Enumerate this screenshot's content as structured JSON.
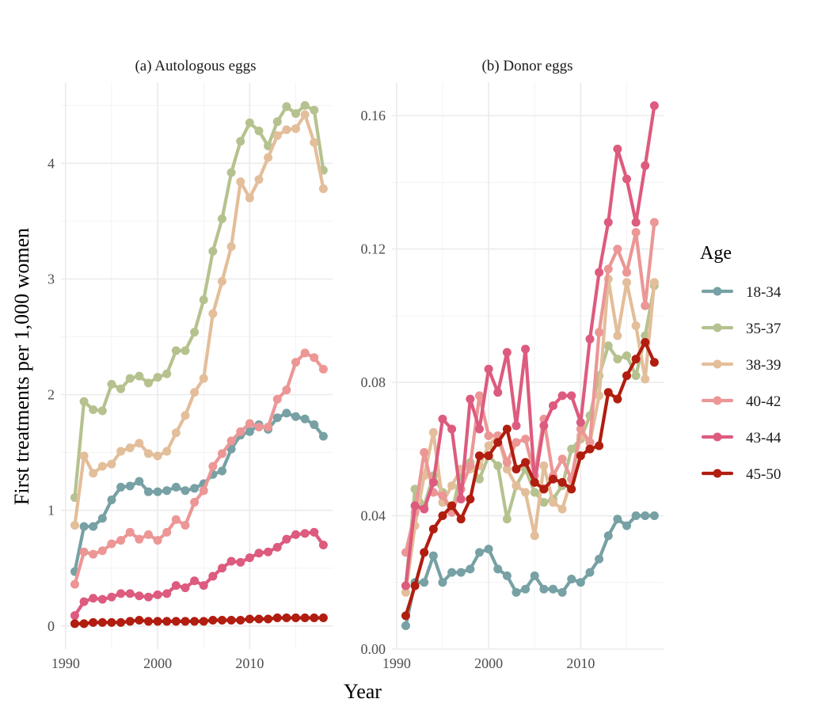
{
  "chart_data": {
    "type": "line",
    "xlabel": "Year",
    "ylabel": "First treatments per 1,000 women",
    "legend": {
      "title": "Age",
      "position": "right"
    },
    "grid": true,
    "colors": {
      "18-34": "#77A1A4",
      "35-37": "#B5C28F",
      "38-39": "#E3BE9A",
      "40-42": "#EC9696",
      "43-44": "#DD5B7E",
      "45-50": "#B11D0F"
    },
    "x": [
      1991,
      1992,
      1993,
      1994,
      1995,
      1996,
      1997,
      1998,
      1999,
      2000,
      2001,
      2002,
      2003,
      2004,
      2005,
      2006,
      2007,
      2008,
      2009,
      2010,
      2011,
      2012,
      2013,
      2014,
      2015,
      2016,
      2017,
      2018
    ],
    "panels": [
      {
        "title": "(a) Autologous eggs",
        "xlim": [
          1989.5,
          2019
        ],
        "xticks": [
          1990,
          2000,
          2010
        ],
        "ylim": [
          -0.2,
          4.7
        ],
        "yticks": [
          0,
          1,
          2,
          3,
          4
        ],
        "ytick_labels": [
          "0",
          "1",
          "2",
          "3",
          "4"
        ],
        "series": [
          {
            "name": "18-34",
            "values": [
              0.47,
              0.86,
              0.86,
              0.93,
              1.09,
              1.2,
              1.21,
              1.25,
              1.16,
              1.16,
              1.17,
              1.2,
              1.17,
              1.19,
              1.23,
              1.31,
              1.34,
              1.53,
              1.65,
              1.68,
              1.74,
              1.7,
              1.8,
              1.84,
              1.81,
              1.79,
              1.74,
              1.64
            ]
          },
          {
            "name": "35-37",
            "values": [
              1.11,
              1.94,
              1.87,
              1.86,
              2.09,
              2.05,
              2.14,
              2.16,
              2.1,
              2.15,
              2.18,
              2.38,
              2.38,
              2.54,
              2.82,
              3.24,
              3.52,
              3.92,
              4.19,
              4.35,
              4.28,
              4.15,
              4.36,
              4.49,
              4.43,
              4.5,
              4.46,
              3.94
            ]
          },
          {
            "name": "38-39",
            "values": [
              0.87,
              1.47,
              1.32,
              1.38,
              1.4,
              1.51,
              1.54,
              1.58,
              1.49,
              1.47,
              1.51,
              1.67,
              1.82,
              2.02,
              2.14,
              2.7,
              2.98,
              3.28,
              3.84,
              3.7,
              3.86,
              4.05,
              4.24,
              4.29,
              4.3,
              4.42,
              4.18,
              3.78
            ]
          },
          {
            "name": "40-42",
            "values": [
              0.36,
              0.64,
              0.62,
              0.65,
              0.71,
              0.74,
              0.81,
              0.75,
              0.79,
              0.74,
              0.81,
              0.92,
              0.87,
              1.07,
              1.17,
              1.38,
              1.49,
              1.6,
              1.68,
              1.75,
              1.72,
              1.72,
              1.96,
              2.04,
              2.28,
              2.36,
              2.32,
              2.22
            ]
          },
          {
            "name": "43-44",
            "values": [
              0.09,
              0.21,
              0.24,
              0.23,
              0.25,
              0.28,
              0.28,
              0.26,
              0.25,
              0.27,
              0.28,
              0.35,
              0.33,
              0.39,
              0.35,
              0.43,
              0.5,
              0.56,
              0.55,
              0.59,
              0.63,
              0.64,
              0.68,
              0.75,
              0.79,
              0.8,
              0.81,
              0.7
            ]
          },
          {
            "name": "45-50",
            "values": [
              0.02,
              0.02,
              0.03,
              0.03,
              0.03,
              0.03,
              0.04,
              0.05,
              0.04,
              0.04,
              0.04,
              0.04,
              0.04,
              0.04,
              0.04,
              0.05,
              0.05,
              0.05,
              0.05,
              0.06,
              0.06,
              0.06,
              0.07,
              0.07,
              0.07,
              0.07,
              0.07,
              0.07
            ]
          }
        ]
      },
      {
        "title": "(b) Donor eggs",
        "xlim": [
          1989.5,
          2019
        ],
        "xticks": [
          1990,
          2000,
          2010
        ],
        "ylim": [
          0,
          0.17
        ],
        "yticks": [
          0,
          0.04,
          0.08,
          0.12,
          0.16
        ],
        "ytick_labels": [
          "0.00",
          "0.04",
          "0.08",
          "0.12",
          "0.16"
        ],
        "series": [
          {
            "name": "18-34",
            "values": [
              0.007,
              0.02,
              0.02,
              0.028,
              0.02,
              0.023,
              0.023,
              0.024,
              0.029,
              0.03,
              0.024,
              0.022,
              0.017,
              0.018,
              0.022,
              0.018,
              0.018,
              0.017,
              0.021,
              0.02,
              0.023,
              0.027,
              0.034,
              0.039,
              0.037,
              0.04,
              0.04,
              0.04
            ]
          },
          {
            "name": "35-37",
            "values": [
              0.019,
              0.048,
              0.043,
              0.052,
              0.047,
              0.041,
              0.053,
              0.056,
              0.051,
              0.058,
              0.055,
              0.039,
              0.049,
              0.054,
              0.047,
              0.044,
              0.045,
              0.049,
              0.06,
              0.063,
              0.07,
              0.082,
              0.091,
              0.087,
              0.088,
              0.082,
              0.094,
              0.109
            ]
          },
          {
            "name": "38-39",
            "values": [
              0.017,
              0.037,
              0.052,
              0.065,
              0.044,
              0.049,
              0.054,
              0.054,
              0.055,
              0.061,
              0.064,
              0.054,
              0.049,
              0.047,
              0.034,
              0.055,
              0.044,
              0.042,
              0.051,
              0.064,
              0.062,
              0.076,
              0.111,
              0.094,
              0.11,
              0.097,
              0.081,
              0.11
            ]
          },
          {
            "name": "40-42",
            "values": [
              0.029,
              0.041,
              0.059,
              0.047,
              0.046,
              0.041,
              0.048,
              0.055,
              0.076,
              0.064,
              0.064,
              0.056,
              0.062,
              0.063,
              0.052,
              0.069,
              0.052,
              0.057,
              0.051,
              0.066,
              0.062,
              0.095,
              0.114,
              0.12,
              0.113,
              0.125,
              0.103,
              0.128
            ]
          },
          {
            "name": "43-44",
            "values": [
              0.019,
              0.043,
              0.042,
              0.05,
              0.069,
              0.066,
              0.045,
              0.075,
              0.066,
              0.084,
              0.077,
              0.089,
              0.067,
              0.09,
              0.05,
              0.067,
              0.073,
              0.076,
              0.076,
              0.068,
              0.093,
              0.113,
              0.128,
              0.15,
              0.141,
              0.128,
              0.145,
              0.163
            ]
          },
          {
            "name": "45-50",
            "values": [
              0.01,
              0.019,
              0.029,
              0.036,
              0.04,
              0.043,
              0.039,
              0.045,
              0.058,
              0.058,
              0.062,
              0.066,
              0.054,
              0.056,
              0.05,
              0.048,
              0.051,
              0.05,
              0.048,
              0.058,
              0.06,
              0.061,
              0.077,
              0.075,
              0.082,
              0.087,
              0.092,
              0.086
            ]
          }
        ]
      }
    ]
  }
}
